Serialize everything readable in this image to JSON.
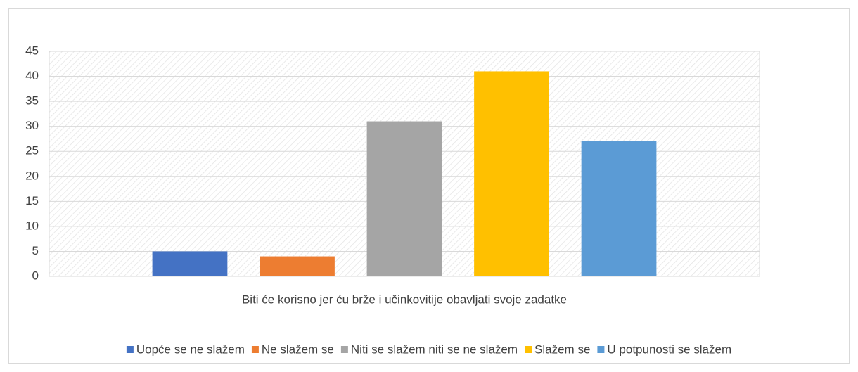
{
  "chart_data": {
    "type": "bar",
    "categories": [
      "Biti će korisno jer ću brže i učinkovitije obavljati svoje zadatke"
    ],
    "series": [
      {
        "name": "Uopće se ne slažem",
        "color": "#4472c4",
        "values": [
          5
        ]
      },
      {
        "name": "Ne slažem se",
        "color": "#ed7d31",
        "values": [
          4
        ]
      },
      {
        "name": "Niti se slažem niti se ne slažem",
        "color": "#a5a5a5",
        "values": [
          31
        ]
      },
      {
        "name": "Slažem se",
        "color": "#ffc000",
        "values": [
          41
        ]
      },
      {
        "name": "U potpunosti se slažem",
        "color": "#5b9bd5",
        "values": [
          27
        ]
      }
    ],
    "ylim": [
      0,
      45
    ],
    "yticks": [
      0,
      5,
      10,
      15,
      20,
      25,
      30,
      35,
      40,
      45
    ],
    "grid": true,
    "legend": "bottom"
  }
}
